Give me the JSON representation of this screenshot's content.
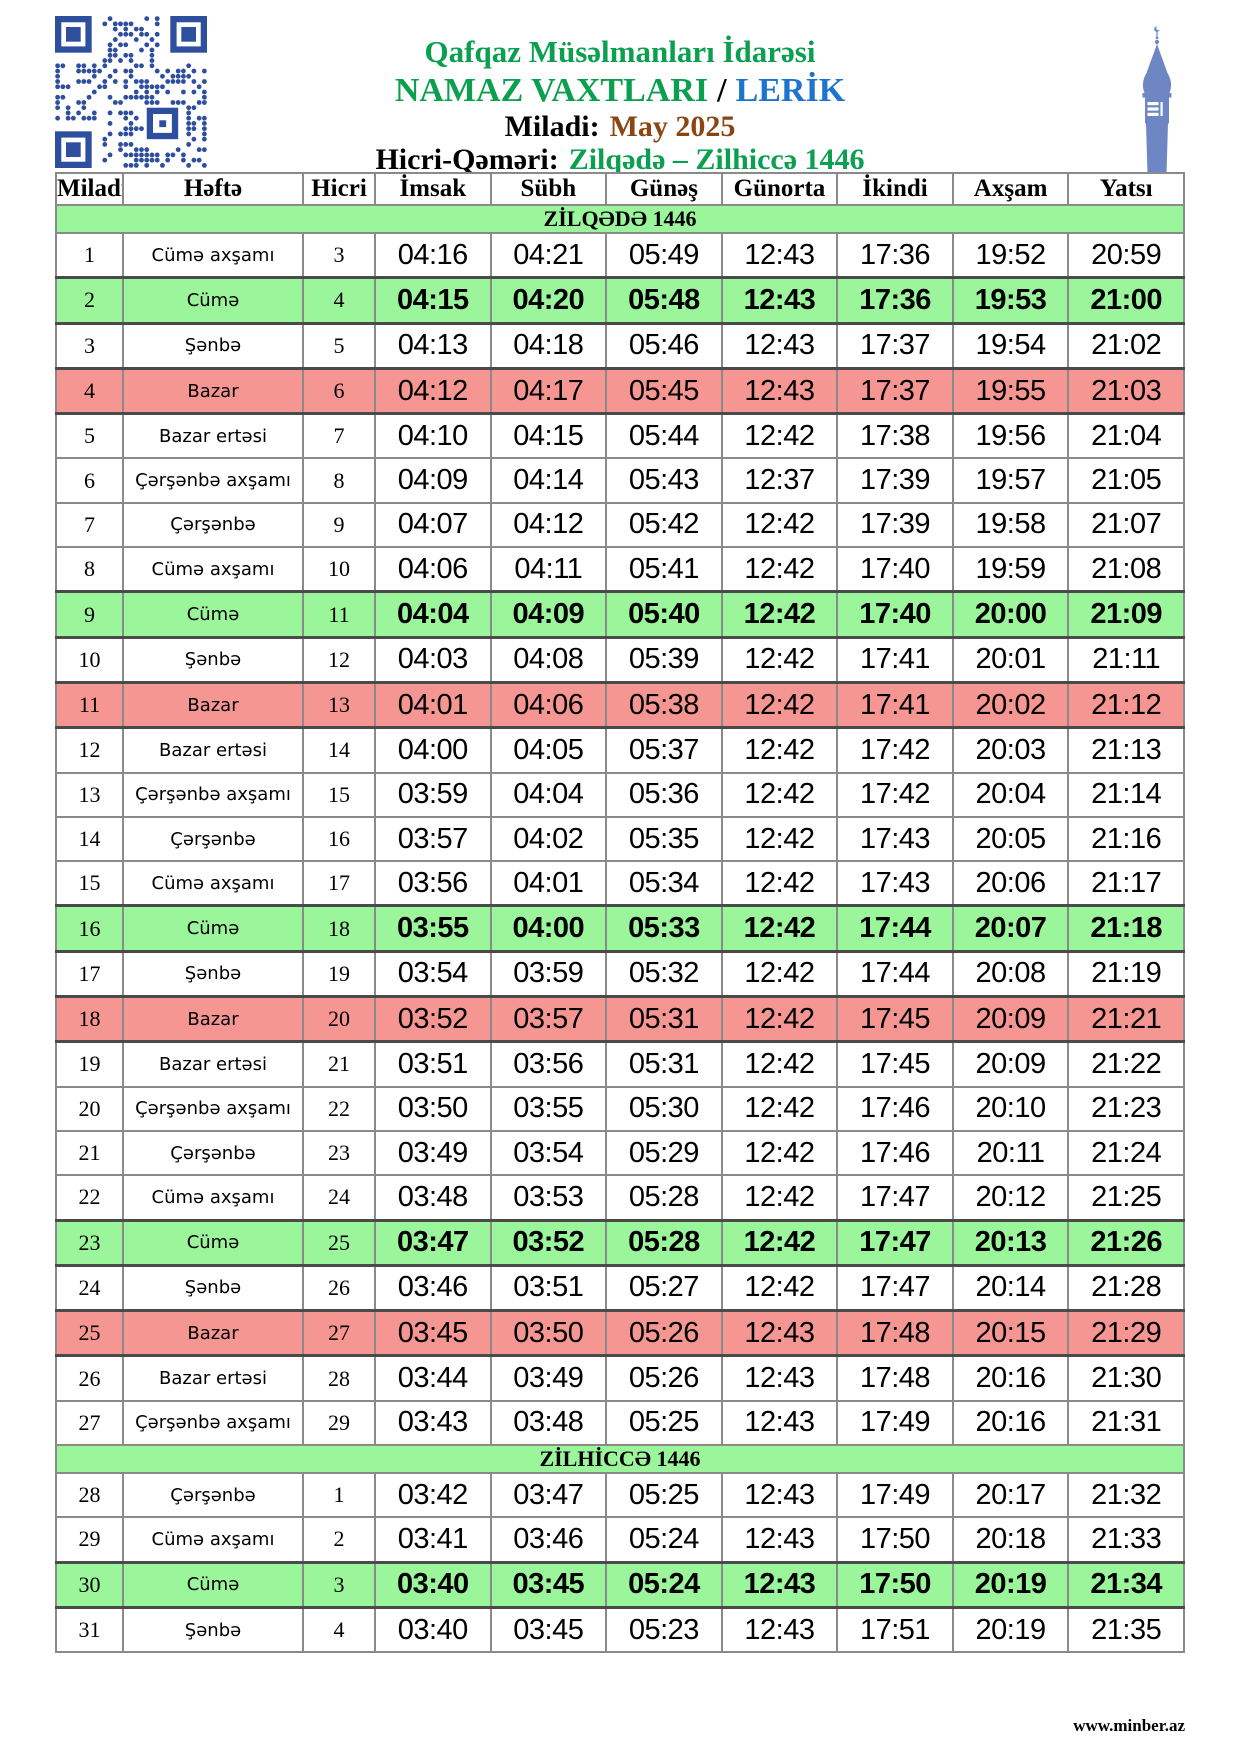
{
  "header": {
    "organization": "Qafqaz Müsəlmanları İdarəsi",
    "title": "NAMAZ VAXTLARI",
    "title_separator": "/",
    "location": "LERİK",
    "miladi_label": "Miladi:",
    "miladi_value": "May 2025",
    "hicri_label": "Hicri-Qəməri:",
    "hicri_value": "Zilqədə – Zilhiccə 1446"
  },
  "icons": {
    "qr": "qr-code-icon",
    "minaret": "minaret-icon"
  },
  "colors": {
    "friday_row_green": "#9bf59b",
    "sunday_row_red": "#f69692",
    "title_green": "#0aa04f",
    "location_blue": "#1e73cf",
    "miladi_brown": "#8b4513",
    "qr_blue": "#2d4f9e",
    "minaret_blue": "#6e86c3"
  },
  "table": {
    "columns": [
      "Miladi",
      "Həftə",
      "Hicri",
      "İmsak",
      "Sübh",
      "Günəş",
      "Günorta",
      "İkindi",
      "Axşam",
      "Yatsı"
    ],
    "sections": [
      {
        "title": "ZİLQƏDƏ 1446",
        "rows": [
          {
            "miladi": "1",
            "hefte": "Cümə axşamı",
            "hicri": "3",
            "times": [
              "04:16",
              "04:21",
              "05:49",
              "12:43",
              "17:36",
              "19:52",
              "20:59"
            ],
            "h": "n"
          },
          {
            "miladi": "2",
            "hefte": "Cümə",
            "hicri": "4",
            "times": [
              "04:15",
              "04:20",
              "05:48",
              "12:43",
              "17:36",
              "19:53",
              "21:00"
            ],
            "h": "g"
          },
          {
            "miladi": "3",
            "hefte": "Şənbə",
            "hicri": "5",
            "times": [
              "04:13",
              "04:18",
              "05:46",
              "12:43",
              "17:37",
              "19:54",
              "21:02"
            ],
            "h": "n"
          },
          {
            "miladi": "4",
            "hefte": "Bazar",
            "hicri": "6",
            "times": [
              "04:12",
              "04:17",
              "05:45",
              "12:43",
              "17:37",
              "19:55",
              "21:03"
            ],
            "h": "r"
          },
          {
            "miladi": "5",
            "hefte": "Bazar ertəsi",
            "hicri": "7",
            "times": [
              "04:10",
              "04:15",
              "05:44",
              "12:42",
              "17:38",
              "19:56",
              "21:04"
            ],
            "h": "n"
          },
          {
            "miladi": "6",
            "hefte": "Çərşənbə axşamı",
            "hicri": "8",
            "times": [
              "04:09",
              "04:14",
              "05:43",
              "12:37",
              "17:39",
              "19:57",
              "21:05"
            ],
            "h": "n"
          },
          {
            "miladi": "7",
            "hefte": "Çərşənbə",
            "hicri": "9",
            "times": [
              "04:07",
              "04:12",
              "05:42",
              "12:42",
              "17:39",
              "19:58",
              "21:07"
            ],
            "h": "n"
          },
          {
            "miladi": "8",
            "hefte": "Cümə axşamı",
            "hicri": "10",
            "times": [
              "04:06",
              "04:11",
              "05:41",
              "12:42",
              "17:40",
              "19:59",
              "21:08"
            ],
            "h": "n"
          },
          {
            "miladi": "9",
            "hefte": "Cümə",
            "hicri": "11",
            "times": [
              "04:04",
              "04:09",
              "05:40",
              "12:42",
              "17:40",
              "20:00",
              "21:09"
            ],
            "h": "g"
          },
          {
            "miladi": "10",
            "hefte": "Şənbə",
            "hicri": "12",
            "times": [
              "04:03",
              "04:08",
              "05:39",
              "12:42",
              "17:41",
              "20:01",
              "21:11"
            ],
            "h": "n"
          },
          {
            "miladi": "11",
            "hefte": "Bazar",
            "hicri": "13",
            "times": [
              "04:01",
              "04:06",
              "05:38",
              "12:42",
              "17:41",
              "20:02",
              "21:12"
            ],
            "h": "r"
          },
          {
            "miladi": "12",
            "hefte": "Bazar ertəsi",
            "hicri": "14",
            "times": [
              "04:00",
              "04:05",
              "05:37",
              "12:42",
              "17:42",
              "20:03",
              "21:13"
            ],
            "h": "n"
          },
          {
            "miladi": "13",
            "hefte": "Çərşənbə axşamı",
            "hicri": "15",
            "times": [
              "03:59",
              "04:04",
              "05:36",
              "12:42",
              "17:42",
              "20:04",
              "21:14"
            ],
            "h": "n"
          },
          {
            "miladi": "14",
            "hefte": "Çərşənbə",
            "hicri": "16",
            "times": [
              "03:57",
              "04:02",
              "05:35",
              "12:42",
              "17:43",
              "20:05",
              "21:16"
            ],
            "h": "n"
          },
          {
            "miladi": "15",
            "hefte": "Cümə axşamı",
            "hicri": "17",
            "times": [
              "03:56",
              "04:01",
              "05:34",
              "12:42",
              "17:43",
              "20:06",
              "21:17"
            ],
            "h": "n"
          },
          {
            "miladi": "16",
            "hefte": "Cümə",
            "hicri": "18",
            "times": [
              "03:55",
              "04:00",
              "05:33",
              "12:42",
              "17:44",
              "20:07",
              "21:18"
            ],
            "h": "g"
          },
          {
            "miladi": "17",
            "hefte": "Şənbə",
            "hicri": "19",
            "times": [
              "03:54",
              "03:59",
              "05:32",
              "12:42",
              "17:44",
              "20:08",
              "21:19"
            ],
            "h": "n"
          },
          {
            "miladi": "18",
            "hefte": "Bazar",
            "hicri": "20",
            "times": [
              "03:52",
              "03:57",
              "05:31",
              "12:42",
              "17:45",
              "20:09",
              "21:21"
            ],
            "h": "r"
          },
          {
            "miladi": "19",
            "hefte": "Bazar ertəsi",
            "hicri": "21",
            "times": [
              "03:51",
              "03:56",
              "05:31",
              "12:42",
              "17:45",
              "20:09",
              "21:22"
            ],
            "h": "n"
          },
          {
            "miladi": "20",
            "hefte": "Çərşənbə axşamı",
            "hicri": "22",
            "times": [
              "03:50",
              "03:55",
              "05:30",
              "12:42",
              "17:46",
              "20:10",
              "21:23"
            ],
            "h": "n"
          },
          {
            "miladi": "21",
            "hefte": "Çərşənbə",
            "hicri": "23",
            "times": [
              "03:49",
              "03:54",
              "05:29",
              "12:42",
              "17:46",
              "20:11",
              "21:24"
            ],
            "h": "n"
          },
          {
            "miladi": "22",
            "hefte": "Cümə axşamı",
            "hicri": "24",
            "times": [
              "03:48",
              "03:53",
              "05:28",
              "12:42",
              "17:47",
              "20:12",
              "21:25"
            ],
            "h": "n"
          },
          {
            "miladi": "23",
            "hefte": "Cümə",
            "hicri": "25",
            "times": [
              "03:47",
              "03:52",
              "05:28",
              "12:42",
              "17:47",
              "20:13",
              "21:26"
            ],
            "h": "g"
          },
          {
            "miladi": "24",
            "hefte": "Şənbə",
            "hicri": "26",
            "times": [
              "03:46",
              "03:51",
              "05:27",
              "12:42",
              "17:47",
              "20:14",
              "21:28"
            ],
            "h": "n"
          },
          {
            "miladi": "25",
            "hefte": "Bazar",
            "hicri": "27",
            "times": [
              "03:45",
              "03:50",
              "05:26",
              "12:43",
              "17:48",
              "20:15",
              "21:29"
            ],
            "h": "r"
          },
          {
            "miladi": "26",
            "hefte": "Bazar ertəsi",
            "hicri": "28",
            "times": [
              "03:44",
              "03:49",
              "05:26",
              "12:43",
              "17:48",
              "20:16",
              "21:30"
            ],
            "h": "n"
          },
          {
            "miladi": "27",
            "hefte": "Çərşənbə axşamı",
            "hicri": "29",
            "times": [
              "03:43",
              "03:48",
              "05:25",
              "12:43",
              "17:49",
              "20:16",
              "21:31"
            ],
            "h": "n"
          }
        ]
      },
      {
        "title": "ZİLHİCCƏ 1446",
        "rows": [
          {
            "miladi": "28",
            "hefte": "Çərşənbə",
            "hicri": "1",
            "times": [
              "03:42",
              "03:47",
              "05:25",
              "12:43",
              "17:49",
              "20:17",
              "21:32"
            ],
            "h": "n"
          },
          {
            "miladi": "29",
            "hefte": "Cümə axşamı",
            "hicri": "2",
            "times": [
              "03:41",
              "03:46",
              "05:24",
              "12:43",
              "17:50",
              "20:18",
              "21:33"
            ],
            "h": "n"
          },
          {
            "miladi": "30",
            "hefte": "Cümə",
            "hicri": "3",
            "times": [
              "03:40",
              "03:45",
              "05:24",
              "12:43",
              "17:50",
              "20:19",
              "21:34"
            ],
            "h": "g"
          },
          {
            "miladi": "31",
            "hefte": "Şənbə",
            "hicri": "4",
            "times": [
              "03:40",
              "03:45",
              "05:23",
              "12:43",
              "17:51",
              "20:19",
              "21:35"
            ],
            "h": "n"
          }
        ]
      }
    ]
  },
  "footer": {
    "website": "www.minber.az"
  }
}
